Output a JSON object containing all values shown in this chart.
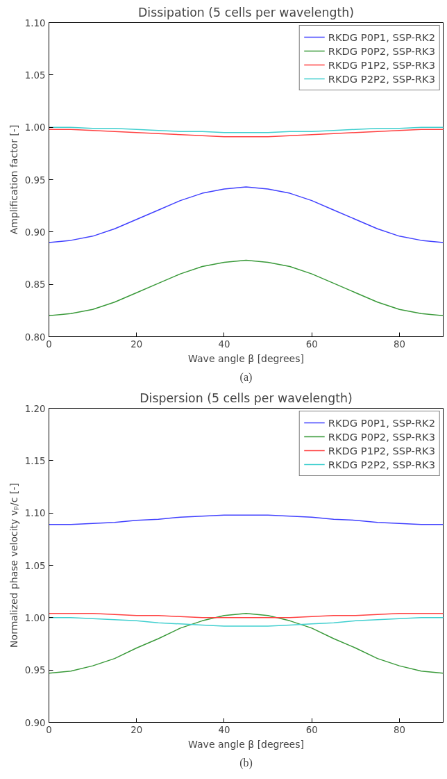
{
  "chart_data": [
    {
      "type": "line",
      "title": "Dissipation (5 cells per wavelength)",
      "xlabel": "Wave angle β [degrees]",
      "ylabel": "Amplification factor [-]",
      "annotations": [
        "(a)"
      ],
      "x": [
        0,
        5,
        10,
        15,
        20,
        25,
        30,
        35,
        40,
        45,
        50,
        55,
        60,
        65,
        70,
        75,
        80,
        85,
        90
      ],
      "series": [
        {
          "name": "RKDG P0P1, SSP-RK2",
          "color": "#4040ff",
          "values": [
            0.89,
            0.892,
            0.896,
            0.903,
            0.912,
            0.921,
            0.93,
            0.937,
            0.941,
            0.943,
            0.941,
            0.937,
            0.93,
            0.921,
            0.912,
            0.903,
            0.896,
            0.892,
            0.89
          ]
        },
        {
          "name": "RKDG P0P2, SSP-RK3",
          "color": "#3a9a3a",
          "values": [
            0.82,
            0.822,
            0.826,
            0.833,
            0.842,
            0.851,
            0.86,
            0.867,
            0.871,
            0.873,
            0.871,
            0.867,
            0.86,
            0.851,
            0.842,
            0.833,
            0.826,
            0.822,
            0.82
          ]
        },
        {
          "name": "RKDG P1P2, SSP-RK3",
          "color": "#ff4040",
          "values": [
            0.998,
            0.998,
            0.997,
            0.996,
            0.995,
            0.994,
            0.993,
            0.992,
            0.991,
            0.991,
            0.991,
            0.992,
            0.993,
            0.994,
            0.995,
            0.996,
            0.997,
            0.998,
            0.998
          ]
        },
        {
          "name": "RKDG P2P2, SSP-RK3",
          "color": "#40cfcf",
          "values": [
            1.0,
            1.0,
            0.999,
            0.999,
            0.998,
            0.997,
            0.996,
            0.996,
            0.995,
            0.995,
            0.995,
            0.996,
            0.996,
            0.997,
            0.998,
            0.999,
            0.999,
            1.0,
            1.0
          ]
        }
      ],
      "xlim": [
        0,
        90
      ],
      "xticks": [
        0,
        20,
        40,
        60,
        80
      ],
      "ylim": [
        0.8,
        1.1
      ],
      "yticks": [
        {
          "value": 0.8,
          "label": "0.80"
        },
        {
          "value": 0.85,
          "label": "0.85"
        },
        {
          "value": 0.9,
          "label": "0.90"
        },
        {
          "value": 0.95,
          "label": "0.95"
        },
        {
          "value": 1.0,
          "label": "1.00"
        },
        {
          "value": 1.05,
          "label": "1.05"
        },
        {
          "value": 1.1,
          "label": "1.10"
        }
      ],
      "legend": "top right",
      "grid": false
    },
    {
      "type": "line",
      "title": "Dispersion (5 cells per wavelength)",
      "xlabel": "Wave angle β [degrees]",
      "ylabel": "Normalized phase velocity vₚ/c [-]",
      "annotations": [
        "(b)"
      ],
      "x": [
        0,
        5,
        10,
        15,
        20,
        25,
        30,
        35,
        40,
        45,
        50,
        55,
        60,
        65,
        70,
        75,
        80,
        85,
        90
      ],
      "series": [
        {
          "name": "RKDG P0P1, SSP-RK2",
          "color": "#4040ff",
          "values": [
            1.089,
            1.089,
            1.09,
            1.091,
            1.093,
            1.094,
            1.096,
            1.097,
            1.098,
            1.098,
            1.098,
            1.097,
            1.096,
            1.094,
            1.093,
            1.091,
            1.09,
            1.089,
            1.089
          ]
        },
        {
          "name": "RKDG P0P2, SSP-RK3",
          "color": "#3a9a3a",
          "values": [
            0.947,
            0.949,
            0.954,
            0.961,
            0.971,
            0.98,
            0.99,
            0.997,
            1.002,
            1.004,
            1.002,
            0.997,
            0.99,
            0.98,
            0.971,
            0.961,
            0.954,
            0.949,
            0.947
          ]
        },
        {
          "name": "RKDG P1P2, SSP-RK3",
          "color": "#ff4040",
          "values": [
            1.004,
            1.004,
            1.004,
            1.003,
            1.002,
            1.002,
            1.001,
            1.0,
            1.0,
            1.0,
            1.0,
            1.0,
            1.001,
            1.002,
            1.002,
            1.003,
            1.004,
            1.004,
            1.004
          ]
        },
        {
          "name": "RKDG P2P2, SSP-RK3",
          "color": "#40cfcf",
          "values": [
            1.0,
            1.0,
            0.999,
            0.998,
            0.997,
            0.995,
            0.994,
            0.993,
            0.992,
            0.992,
            0.992,
            0.993,
            0.994,
            0.995,
            0.997,
            0.998,
            0.999,
            1.0,
            1.0
          ]
        }
      ],
      "xlim": [
        0,
        90
      ],
      "xticks": [
        0,
        20,
        40,
        60,
        80
      ],
      "ylim": [
        0.9,
        1.2
      ],
      "yticks": [
        {
          "value": 0.9,
          "label": "0.90"
        },
        {
          "value": 0.95,
          "label": "0.95"
        },
        {
          "value": 1.0,
          "label": "1.00"
        },
        {
          "value": 1.05,
          "label": "1.05"
        },
        {
          "value": 1.1,
          "label": "1.10"
        },
        {
          "value": 1.15,
          "label": "1.15"
        },
        {
          "value": 1.2,
          "label": "1.20"
        }
      ],
      "legend": "top right",
      "grid": false
    }
  ]
}
